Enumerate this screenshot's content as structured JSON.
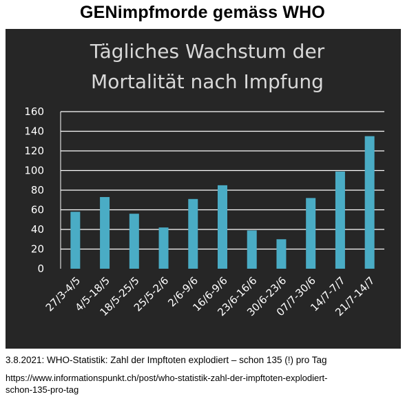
{
  "header": {
    "title": "GENimpfmorde gemäss WHO"
  },
  "chart_data": {
    "type": "bar",
    "title_lines": [
      "Tägliches Wachstum der",
      "Mortalität nach Impfung"
    ],
    "categories": [
      "27/3-4/5",
      "4/5-18/5",
      "18/5-25/5",
      "25/5-2/6",
      "2/6-9/6",
      "16/6-9/6",
      "23/6-16/6",
      "30/6-23/6",
      "07/7-30/6",
      "14/7-7/7",
      "21/7-14/7"
    ],
    "values": [
      58,
      73,
      56,
      42,
      71,
      85,
      39,
      30,
      72,
      99,
      135
    ],
    "yticks": [
      0,
      20,
      40,
      60,
      80,
      100,
      120,
      140,
      160
    ],
    "ylim": [
      0,
      160
    ],
    "grid": true,
    "legend": "none",
    "colors": {
      "background": "#262626",
      "bar": "#4aacc5",
      "grid": "#ffffff",
      "text": "#ffffff"
    }
  },
  "footer": {
    "caption": "3.8.2021: WHO-Statistik: Zahl der Impftoten explodiert – schon 135 (!) pro Tag",
    "url_line1": "https://www.informationspunkt.ch/post/who-statistik-zahl-der-impftoten-explodiert-",
    "url_line2": "schon-135-pro-tag"
  }
}
